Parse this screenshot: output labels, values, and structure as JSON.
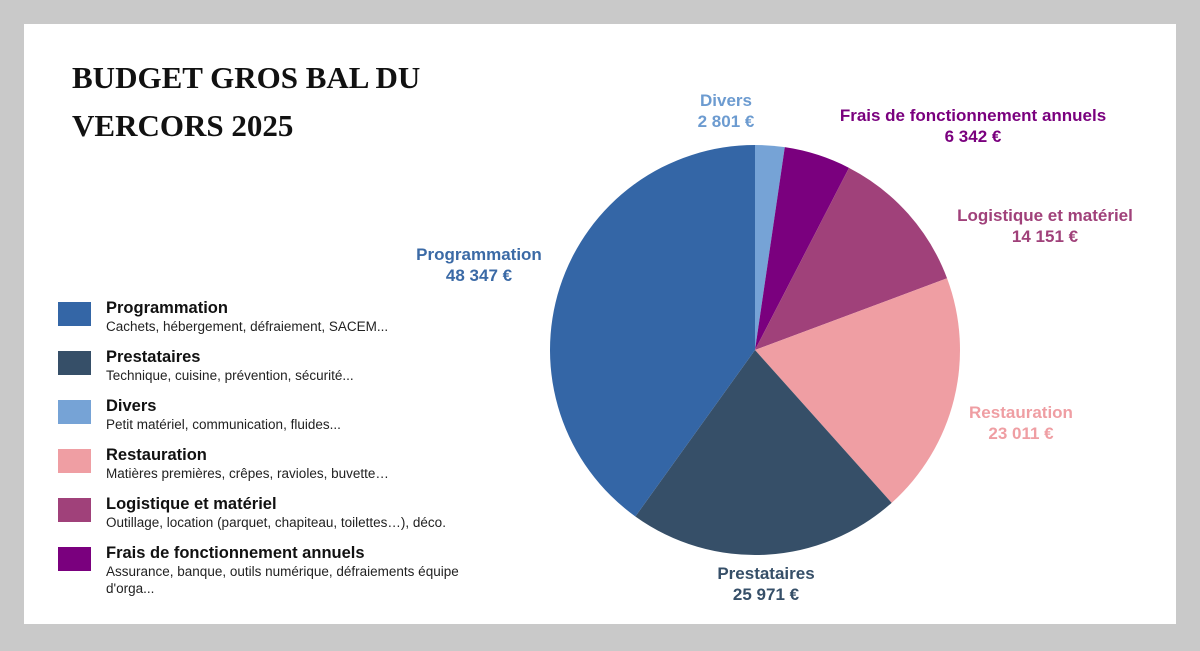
{
  "title_lines": [
    "BUDGET GROS BAL DU",
    "VERCORS 2025"
  ],
  "chart_data": {
    "type": "pie",
    "title": "BUDGET GROS BAL DU VERCORS 2025",
    "start": "top",
    "direction": "clockwise",
    "slices": [
      {
        "name": "Divers",
        "value": 2801,
        "value_label": "2 801 €",
        "color": "#76a3d6"
      },
      {
        "name": "Frais de fonctionnement annuels",
        "value": 6342,
        "value_label": "6 342 €",
        "color": "#7a007e"
      },
      {
        "name": "Logistique et matériel",
        "value": 14151,
        "value_label": "14 151 €",
        "color": "#a0417a"
      },
      {
        "name": "Restauration",
        "value": 23011,
        "value_label": "23 011 €",
        "color": "#ef9ea3"
      },
      {
        "name": "Prestataires",
        "value": 25971,
        "value_label": "25 971 €",
        "color": "#364f68"
      },
      {
        "name": "Programmation",
        "value": 48347,
        "value_label": "48 347 €",
        "color": "#3466a6"
      }
    ],
    "label_colors": {
      "Divers": "#6c9bd0",
      "Frais de fonctionnement annuels": "#7a007e",
      "Logistique et matériel": "#a0417a",
      "Restauration": "#ef9ea3",
      "Prestataires": "#364f68",
      "Programmation": "#3b6aa6"
    }
  },
  "legend": [
    {
      "name": "Programmation",
      "desc": "Cachets, hébergement, défraiement, SACEM...",
      "color": "#3466a6"
    },
    {
      "name": "Prestataires",
      "desc": "Technique, cuisine, prévention, sécurité...",
      "color": "#364f68"
    },
    {
      "name": "Divers",
      "desc": "Petit matériel, communication, fluides...",
      "color": "#76a3d6"
    },
    {
      "name": "Restauration",
      "desc": "Matières premières, crêpes, ravioles, buvette…",
      "color": "#ef9ea3"
    },
    {
      "name": "Logistique et matériel",
      "desc": "Outillage, location (parquet, chapiteau, toilettes…), déco.",
      "color": "#a0417a"
    },
    {
      "name": "Frais de fonctionnement annuels",
      "desc": "Assurance, banque, outils numérique, défraiements équipe d'orga...",
      "color": "#7a007e"
    }
  ]
}
